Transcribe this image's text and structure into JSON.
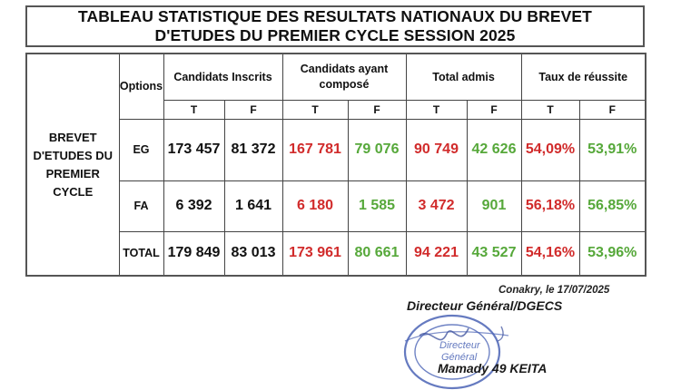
{
  "title": {
    "line1": "TABLEAU STATISTIQUE DES RESULTATS NATIONAUX  DU BREVET",
    "line2": "D'ETUDES DU PREMIER CYCLE SESSION 2025"
  },
  "table": {
    "headers": {
      "options": "Options",
      "inscrits": "Candidats Inscrits",
      "composes": "Candidats ayant composé",
      "admis": "Total admis",
      "taux": "Taux de réussite"
    },
    "subheaders": [
      "T",
      "F",
      "T",
      "F",
      "T",
      "F",
      "T",
      "F"
    ],
    "row_label": "BREVET D'ETUDES DU PREMIER CYCLE",
    "rows": [
      {
        "option": "EG",
        "values": [
          "173 457",
          "81 372",
          "167 781",
          "79 076",
          "90 749",
          "42 626",
          "54,09%",
          "53,91%"
        ]
      },
      {
        "option": "FA",
        "values": [
          "6 392",
          "1 641",
          "6 180",
          "1 585",
          "3 472",
          "901",
          "56,18%",
          "56,85%"
        ]
      },
      {
        "option": "TOTAL",
        "values": [
          "179 849",
          "83 013",
          "173 961",
          "80 661",
          "94 221",
          "43 527",
          "54,16%",
          "53,96%"
        ]
      }
    ]
  },
  "colors": {
    "black": "#111111",
    "red": "#d12b2b",
    "green": "#56a83a",
    "stamp_blue": "#4a63b5"
  },
  "signature": {
    "place_date": "Conakry, le 17/07/2025",
    "role": "Directeur Général/DGECS",
    "name": "Mamady 49 KEITA",
    "stamp_text": "Directeur Général"
  }
}
